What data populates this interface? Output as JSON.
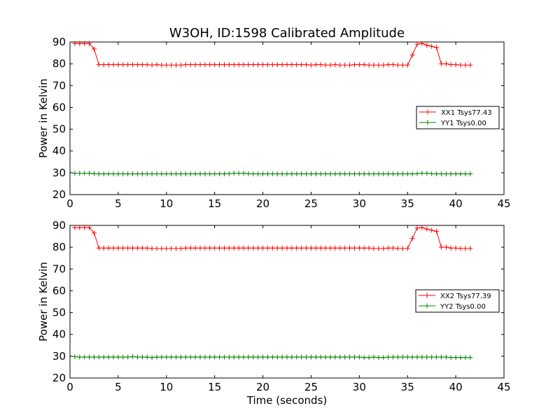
{
  "title": "W3OH, ID:1598 Calibrated Amplitude",
  "chart_data": [
    {
      "type": "line",
      "ylabel": "Power in Kelvin",
      "xlabel": "",
      "xlim": [
        0,
        45
      ],
      "ylim": [
        20,
        90
      ],
      "xticks": [
        0,
        5,
        10,
        15,
        20,
        25,
        30,
        35,
        40,
        45
      ],
      "yticks": [
        20,
        30,
        40,
        50,
        60,
        70,
        80,
        90
      ],
      "legend_position": "center-right",
      "series": [
        {
          "name": "XX1 Tsys77.43",
          "color": "#ff0000",
          "x": [
            0.5,
            1.0,
            1.5,
            2.0,
            2.5,
            3.0,
            3.5,
            4.0,
            4.5,
            5.0,
            5.5,
            6.0,
            6.5,
            7.0,
            7.5,
            8.0,
            8.5,
            9.0,
            9.5,
            10.0,
            10.5,
            11.0,
            11.5,
            12.0,
            12.5,
            13.0,
            13.5,
            14.0,
            14.5,
            15.0,
            15.5,
            16.0,
            16.5,
            17.0,
            17.5,
            18.0,
            18.5,
            19.0,
            19.5,
            20.0,
            20.5,
            21.0,
            21.5,
            22.0,
            22.5,
            23.0,
            23.5,
            24.0,
            24.5,
            25.0,
            25.5,
            26.0,
            26.5,
            27.0,
            27.5,
            28.0,
            28.5,
            29.0,
            29.5,
            30.0,
            30.5,
            31.0,
            31.5,
            32.0,
            32.5,
            33.0,
            33.5,
            34.0,
            34.5,
            35.0,
            35.5,
            36.0,
            36.5,
            37.0,
            37.5,
            38.0,
            38.5,
            39.0,
            39.5,
            40.0,
            40.5,
            41.0,
            41.5
          ],
          "y": [
            89.3,
            89.3,
            89.3,
            89.3,
            86.8,
            79.6,
            79.6,
            79.6,
            79.6,
            79.6,
            79.6,
            79.6,
            79.6,
            79.6,
            79.6,
            79.6,
            79.4,
            79.6,
            79.4,
            79.4,
            79.4,
            79.4,
            79.4,
            79.6,
            79.6,
            79.6,
            79.6,
            79.6,
            79.6,
            79.6,
            79.6,
            79.6,
            79.6,
            79.6,
            79.6,
            79.6,
            79.6,
            79.6,
            79.6,
            79.6,
            79.6,
            79.6,
            79.6,
            79.6,
            79.6,
            79.6,
            79.6,
            79.6,
            79.6,
            79.4,
            79.6,
            79.6,
            79.4,
            79.4,
            79.6,
            79.4,
            79.4,
            79.4,
            79.6,
            79.6,
            79.6,
            79.4,
            79.4,
            79.4,
            79.4,
            79.6,
            79.6,
            79.4,
            79.4,
            79.4,
            84.0,
            89.0,
            89.3,
            88.5,
            88.0,
            87.5,
            80.0,
            80.0,
            79.6,
            79.6,
            79.4,
            79.4,
            79.4
          ]
        },
        {
          "name": "YY1 Tsys0.00",
          "color": "#008000",
          "x": [
            0.5,
            1.0,
            1.5,
            2.0,
            2.5,
            3.0,
            3.5,
            4.0,
            4.5,
            5.0,
            5.5,
            6.0,
            6.5,
            7.0,
            7.5,
            8.0,
            8.5,
            9.0,
            9.5,
            10.0,
            10.5,
            11.0,
            11.5,
            12.0,
            12.5,
            13.0,
            13.5,
            14.0,
            14.5,
            15.0,
            15.5,
            16.0,
            16.5,
            17.0,
            17.5,
            18.0,
            18.5,
            19.0,
            19.5,
            20.0,
            20.5,
            21.0,
            21.5,
            22.0,
            22.5,
            23.0,
            23.5,
            24.0,
            24.5,
            25.0,
            25.5,
            26.0,
            26.5,
            27.0,
            27.5,
            28.0,
            28.5,
            29.0,
            29.5,
            30.0,
            30.5,
            31.0,
            31.5,
            32.0,
            32.5,
            33.0,
            33.5,
            34.0,
            34.5,
            35.0,
            35.5,
            36.0,
            36.5,
            37.0,
            37.5,
            38.0,
            38.5,
            39.0,
            39.5,
            40.0,
            40.5,
            41.0,
            41.5
          ],
          "y": [
            29.8,
            29.8,
            29.8,
            29.8,
            29.6,
            29.5,
            29.5,
            29.5,
            29.5,
            29.5,
            29.5,
            29.5,
            29.5,
            29.5,
            29.5,
            29.5,
            29.5,
            29.5,
            29.5,
            29.5,
            29.5,
            29.5,
            29.5,
            29.5,
            29.5,
            29.5,
            29.5,
            29.5,
            29.5,
            29.5,
            29.5,
            29.5,
            29.6,
            29.8,
            29.8,
            29.8,
            29.6,
            29.5,
            29.5,
            29.5,
            29.5,
            29.5,
            29.5,
            29.5,
            29.5,
            29.5,
            29.5,
            29.5,
            29.5,
            29.5,
            29.5,
            29.5,
            29.5,
            29.5,
            29.5,
            29.5,
            29.5,
            29.5,
            29.5,
            29.5,
            29.5,
            29.5,
            29.5,
            29.5,
            29.5,
            29.5,
            29.5,
            29.5,
            29.5,
            29.5,
            29.5,
            29.6,
            29.8,
            29.8,
            29.6,
            29.5,
            29.5,
            29.5,
            29.5,
            29.5,
            29.5,
            29.5,
            29.5
          ]
        }
      ]
    },
    {
      "type": "line",
      "ylabel": "Power in Kelvin",
      "xlabel": "Time (seconds)",
      "xlim": [
        0,
        45
      ],
      "ylim": [
        20,
        90
      ],
      "xticks": [
        0,
        5,
        10,
        15,
        20,
        25,
        30,
        35,
        40,
        45
      ],
      "yticks": [
        20,
        30,
        40,
        50,
        60,
        70,
        80,
        90
      ],
      "legend_position": "center-right",
      "series": [
        {
          "name": "XX2 Tsys77.39",
          "color": "#ff0000",
          "x": [
            0.5,
            1.0,
            1.5,
            2.0,
            2.5,
            3.0,
            3.5,
            4.0,
            4.5,
            5.0,
            5.5,
            6.0,
            6.5,
            7.0,
            7.5,
            8.0,
            8.5,
            9.0,
            9.5,
            10.0,
            10.5,
            11.0,
            11.5,
            12.0,
            12.5,
            13.0,
            13.5,
            14.0,
            14.5,
            15.0,
            15.5,
            16.0,
            16.5,
            17.0,
            17.5,
            18.0,
            18.5,
            19.0,
            19.5,
            20.0,
            20.5,
            21.0,
            21.5,
            22.0,
            22.5,
            23.0,
            23.5,
            24.0,
            24.5,
            25.0,
            25.5,
            26.0,
            26.5,
            27.0,
            27.5,
            28.0,
            28.5,
            29.0,
            29.5,
            30.0,
            30.5,
            31.0,
            31.5,
            32.0,
            32.5,
            33.0,
            33.5,
            34.0,
            34.5,
            35.0,
            35.5,
            36.0,
            36.5,
            37.0,
            37.5,
            38.0,
            38.5,
            39.0,
            39.5,
            40.0,
            40.5,
            41.0,
            41.5
          ],
          "y": [
            89.0,
            89.0,
            89.0,
            89.0,
            86.5,
            79.6,
            79.6,
            79.6,
            79.6,
            79.6,
            79.6,
            79.6,
            79.6,
            79.6,
            79.6,
            79.6,
            79.4,
            79.4,
            79.4,
            79.4,
            79.4,
            79.4,
            79.4,
            79.6,
            79.6,
            79.6,
            79.6,
            79.6,
            79.6,
            79.6,
            79.6,
            79.6,
            79.6,
            79.6,
            79.6,
            79.6,
            79.6,
            79.6,
            79.6,
            79.6,
            79.6,
            79.6,
            79.6,
            79.6,
            79.6,
            79.6,
            79.6,
            79.6,
            79.6,
            79.6,
            79.6,
            79.6,
            79.6,
            79.6,
            79.6,
            79.6,
            79.6,
            79.6,
            79.6,
            79.6,
            79.6,
            79.6,
            79.4,
            79.4,
            79.4,
            79.6,
            79.6,
            79.4,
            79.4,
            79.4,
            84.0,
            88.8,
            89.0,
            88.3,
            87.8,
            87.3,
            80.0,
            80.0,
            79.6,
            79.6,
            79.4,
            79.4,
            79.4
          ]
        },
        {
          "name": "YY2 Tsys0.00",
          "color": "#008000",
          "x": [
            0.5,
            1.0,
            1.5,
            2.0,
            2.5,
            3.0,
            3.5,
            4.0,
            4.5,
            5.0,
            5.5,
            6.0,
            6.5,
            7.0,
            7.5,
            8.0,
            8.5,
            9.0,
            9.5,
            10.0,
            10.5,
            11.0,
            11.5,
            12.0,
            12.5,
            13.0,
            13.5,
            14.0,
            14.5,
            15.0,
            15.5,
            16.0,
            16.5,
            17.0,
            17.5,
            18.0,
            18.5,
            19.0,
            19.5,
            20.0,
            20.5,
            21.0,
            21.5,
            22.0,
            22.5,
            23.0,
            23.5,
            24.0,
            24.5,
            25.0,
            25.5,
            26.0,
            26.5,
            27.0,
            27.5,
            28.0,
            28.5,
            29.0,
            29.5,
            30.0,
            30.5,
            31.0,
            31.5,
            32.0,
            32.5,
            33.0,
            33.5,
            34.0,
            34.5,
            35.0,
            35.5,
            36.0,
            36.5,
            37.0,
            37.5,
            38.0,
            38.5,
            39.0,
            39.5,
            40.0,
            40.5,
            41.0,
            41.5
          ],
          "y": [
            29.8,
            29.6,
            29.6,
            29.6,
            29.6,
            29.6,
            29.6,
            29.6,
            29.6,
            29.6,
            29.6,
            29.6,
            29.8,
            29.6,
            29.6,
            29.6,
            29.4,
            29.6,
            29.6,
            29.6,
            29.6,
            29.6,
            29.6,
            29.6,
            29.6,
            29.6,
            29.6,
            29.6,
            29.6,
            29.6,
            29.6,
            29.6,
            29.6,
            29.6,
            29.6,
            29.6,
            29.6,
            29.6,
            29.6,
            29.6,
            29.6,
            29.6,
            29.6,
            29.6,
            29.6,
            29.6,
            29.6,
            29.6,
            29.6,
            29.6,
            29.6,
            29.6,
            29.6,
            29.6,
            29.6,
            29.6,
            29.6,
            29.6,
            29.6,
            29.6,
            29.4,
            29.4,
            29.6,
            29.4,
            29.4,
            29.6,
            29.6,
            29.6,
            29.6,
            29.6,
            29.6,
            29.6,
            29.6,
            29.6,
            29.6,
            29.6,
            29.6,
            29.6,
            29.4,
            29.4,
            29.4,
            29.4,
            29.4
          ]
        }
      ]
    }
  ]
}
